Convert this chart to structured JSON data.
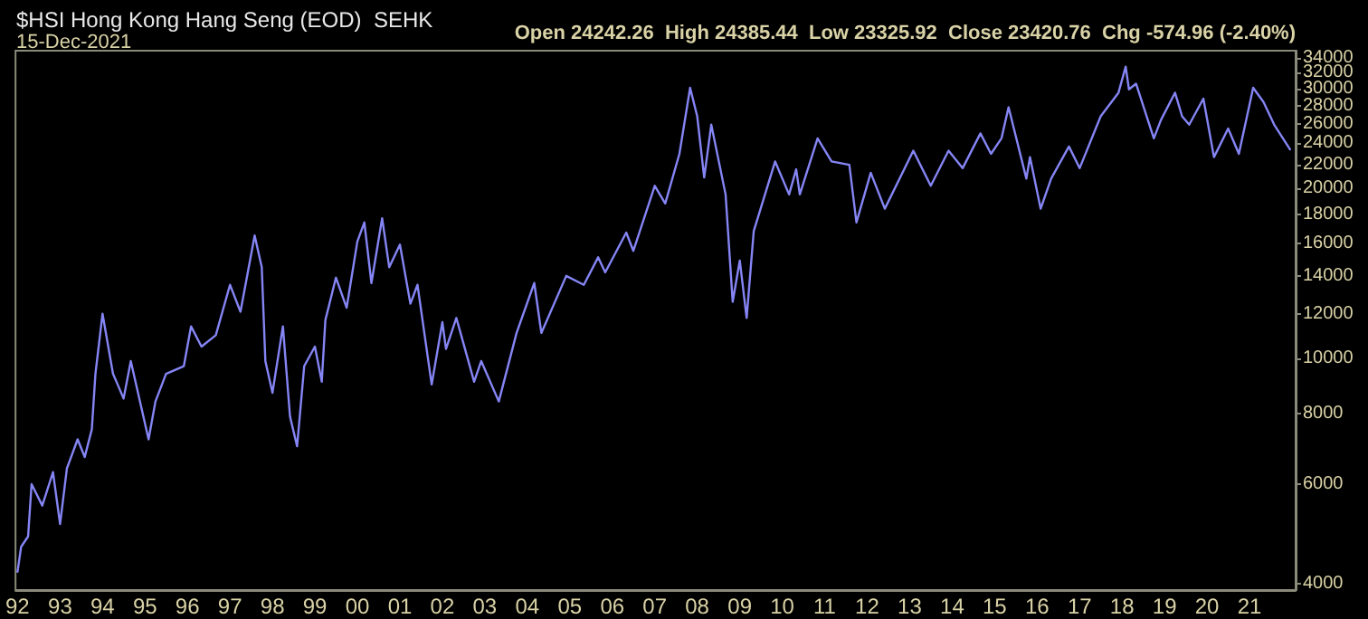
{
  "chart_data": {
    "type": "line",
    "title": "$HSI Hong Kong Hang Seng (EOD)  SEHK",
    "subtitle": "15-Dec-2021",
    "annotations": [
      "Open 24242.26  High 24385.44  Low 23325.92  Close 23420.76  Chg -574.96 (-2.40%)"
    ],
    "x": [
      "1992-01",
      "1992-02",
      "1992-04",
      "1992-05",
      "1992-08",
      "1992-11",
      "1993-01",
      "1993-03",
      "1993-06",
      "1993-08",
      "1993-10",
      "1993-11",
      "1994-01",
      "1994-04",
      "1994-05",
      "1994-07",
      "1994-09",
      "1995-02",
      "1995-04",
      "1995-07",
      "1995-12",
      "1996-02",
      "1996-05",
      "1996-09",
      "1997-01",
      "1997-04",
      "1997-08",
      "1997-10",
      "1997-11",
      "1998-01",
      "1998-04",
      "1998-06",
      "1998-08",
      "1998-10",
      "1999-01",
      "1999-03",
      "1999-04",
      "1999-07",
      "1999-10",
      "2000-01",
      "2000-03",
      "2000-05",
      "2000-08",
      "2000-10",
      "2001-01",
      "2001-04",
      "2001-06",
      "2001-10",
      "2002-01",
      "2002-02",
      "2002-05",
      "2002-10",
      "2002-12",
      "2003-05",
      "2003-10",
      "2004-03",
      "2004-05",
      "2004-12",
      "2005-05",
      "2005-09",
      "2005-11",
      "2006-05",
      "2006-07",
      "2007-01",
      "2007-04",
      "2007-08",
      "2007-11",
      "2008-01",
      "2008-03",
      "2008-05",
      "2008-09",
      "2008-11",
      "2009-01",
      "2009-03",
      "2009-05",
      "2009-11",
      "2010-03",
      "2010-05",
      "2010-06",
      "2010-11",
      "2011-03",
      "2011-08",
      "2011-10",
      "2012-02",
      "2012-06",
      "2013-02",
      "2013-07",
      "2013-12",
      "2014-04",
      "2014-09",
      "2014-12",
      "2015-03",
      "2015-05",
      "2015-10",
      "2015-11",
      "2016-02",
      "2016-05",
      "2016-10",
      "2017-01",
      "2017-07",
      "2017-12",
      "2018-02",
      "2018-03",
      "2018-05",
      "2018-10",
      "2018-12",
      "2019-04",
      "2019-06",
      "2019-08",
      "2019-12",
      "2020-03",
      "2020-07",
      "2020-10",
      "2021-02",
      "2021-05",
      "2021-08",
      "2021-12-15"
    ],
    "series": [
      {
        "color": "#8585f5",
        "values": [
          4200,
          4650,
          4850,
          6000,
          5500,
          6300,
          5100,
          6400,
          7200,
          6700,
          7500,
          9400,
          12000,
          9400,
          9100,
          8500,
          9900,
          7200,
          8400,
          9400,
          9700,
          11400,
          10500,
          11000,
          13500,
          12100,
          16500,
          14500,
          9900,
          8700,
          11400,
          7900,
          7000,
          9700,
          10500,
          9100,
          11700,
          13900,
          12300,
          16100,
          17400,
          13600,
          17700,
          14500,
          15900,
          12500,
          13500,
          9000,
          11600,
          10400,
          11800,
          9100,
          9900,
          8400,
          11100,
          13600,
          11100,
          14000,
          13500,
          15100,
          14200,
          16700,
          15500,
          20200,
          18800,
          23000,
          30100,
          26800,
          20900,
          25900,
          19500,
          12600,
          14900,
          11800,
          16800,
          22300,
          19500,
          21600,
          19500,
          24500,
          22300,
          22000,
          17400,
          21300,
          18400,
          23300,
          20200,
          23300,
          21700,
          25000,
          23000,
          24500,
          27800,
          20800,
          22700,
          18400,
          20800,
          23700,
          21700,
          26800,
          29500,
          32800,
          29900,
          30600,
          24500,
          26400,
          29500,
          26800,
          25900,
          28800,
          22700,
          25500,
          23000,
          30100,
          28400,
          25900,
          23420.76
        ]
      }
    ],
    "xlim": [
      "1991-12-15",
      "2022-02-01"
    ],
    "xticks": [
      {
        "value": "1992",
        "label": "92"
      },
      {
        "value": "1993",
        "label": "93"
      },
      {
        "value": "1994",
        "label": "94"
      },
      {
        "value": "1995",
        "label": "95"
      },
      {
        "value": "1996",
        "label": "96"
      },
      {
        "value": "1997",
        "label": "97"
      },
      {
        "value": "1998",
        "label": "98"
      },
      {
        "value": "1999",
        "label": "99"
      },
      {
        "value": "2000",
        "label": "00"
      },
      {
        "value": "2001",
        "label": "01"
      },
      {
        "value": "2002",
        "label": "02"
      },
      {
        "value": "2003",
        "label": "03"
      },
      {
        "value": "2004",
        "label": "04"
      },
      {
        "value": "2005",
        "label": "05"
      },
      {
        "value": "2006",
        "label": "06"
      },
      {
        "value": "2007",
        "label": "07"
      },
      {
        "value": "2008",
        "label": "08"
      },
      {
        "value": "2009",
        "label": "09"
      },
      {
        "value": "2010",
        "label": "10"
      },
      {
        "value": "2011",
        "label": "11"
      },
      {
        "value": "2012",
        "label": "12"
      },
      {
        "value": "2013",
        "label": "13"
      },
      {
        "value": "2014",
        "label": "14"
      },
      {
        "value": "2015",
        "label": "15"
      },
      {
        "value": "2016",
        "label": "16"
      },
      {
        "value": "2017",
        "label": "17"
      },
      {
        "value": "2018",
        "label": "18"
      },
      {
        "value": "2019",
        "label": "19"
      },
      {
        "value": "2020",
        "label": "20"
      },
      {
        "value": "2021",
        "label": "21"
      }
    ],
    "ylim": [
      3900,
      35000
    ],
    "yticks": [
      4000,
      6000,
      8000,
      10000,
      12000,
      14000,
      16000,
      18000,
      20000,
      22000,
      24000,
      26000,
      28000,
      30000,
      32000,
      34000
    ],
    "log": true,
    "grid": false,
    "marker": "none",
    "line_style": "solid"
  }
}
